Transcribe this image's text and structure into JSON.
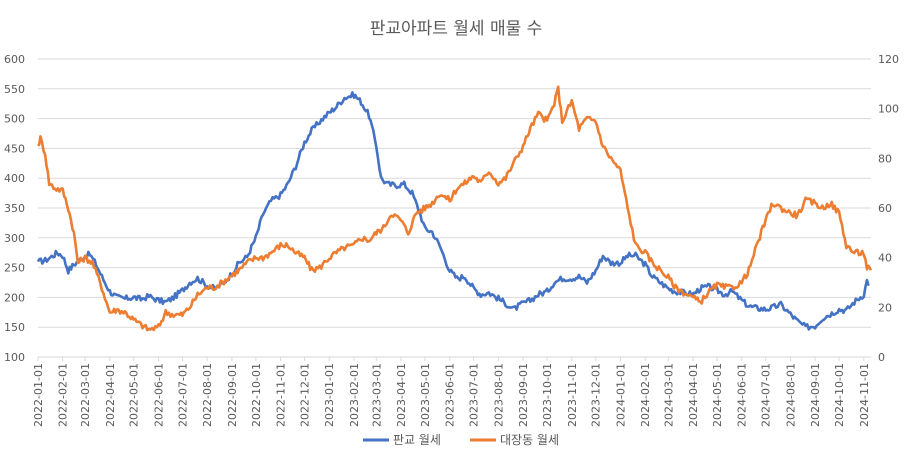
{
  "chart_data": {
    "type": "line",
    "title": "판교아파트 월세 매물 수",
    "xlabel": "",
    "ylabel_left": "",
    "ylabel_right": "",
    "ylim_left": [
      100,
      600
    ],
    "yticks_left": [
      100,
      150,
      200,
      250,
      300,
      350,
      400,
      450,
      500,
      550,
      600
    ],
    "ylim_right": [
      0,
      120
    ],
    "yticks_right": [
      0,
      20,
      40,
      60,
      80,
      100,
      120
    ],
    "grid": "horizontal",
    "legend_position": "bottom",
    "x_start": "2022-01-01",
    "x_end": "2024-11-10",
    "x_ticks": [
      "2022-01-01",
      "2022-02-01",
      "2022-03-01",
      "2022-04-01",
      "2022-05-01",
      "2022-06-01",
      "2022-07-01",
      "2022-08-01",
      "2022-09-01",
      "2022-10-01",
      "2022-11-01",
      "2022-12-01",
      "2023-01-01",
      "2023-02-01",
      "2023-03-01",
      "2023-04-01",
      "2023-05-01",
      "2023-06-01",
      "2023-07-01",
      "2023-08-01",
      "2023-09-01",
      "2023-10-01",
      "2023-11-01",
      "2023-12-01",
      "2024-01-01",
      "2024-02-01",
      "2024-03-01",
      "2024-04-01",
      "2024-05-01",
      "2024-06-01",
      "2024-07-01",
      "2024-08-01",
      "2024-09-01",
      "2024-10-01",
      "2024-11-01"
    ],
    "series": [
      {
        "name": "판교 월세",
        "axis": "left",
        "color": "#4472C4",
        "points": [
          [
            "2022-01-01",
            260
          ],
          [
            "2022-01-10",
            262
          ],
          [
            "2022-01-20",
            270
          ],
          [
            "2022-01-25",
            275
          ],
          [
            "2022-02-01",
            270
          ],
          [
            "2022-02-08",
            245
          ],
          [
            "2022-02-15",
            255
          ],
          [
            "2022-02-22",
            262
          ],
          [
            "2022-03-01",
            270
          ],
          [
            "2022-03-07",
            272
          ],
          [
            "2022-03-15",
            255
          ],
          [
            "2022-03-22",
            235
          ],
          [
            "2022-04-01",
            210
          ],
          [
            "2022-04-10",
            200
          ],
          [
            "2022-04-20",
            198
          ],
          [
            "2022-05-01",
            200
          ],
          [
            "2022-05-10",
            197
          ],
          [
            "2022-05-20",
            202
          ],
          [
            "2022-06-01",
            195
          ],
          [
            "2022-06-10",
            192
          ],
          [
            "2022-06-20",
            200
          ],
          [
            "2022-07-01",
            212
          ],
          [
            "2022-07-10",
            225
          ],
          [
            "2022-07-20",
            232
          ],
          [
            "2022-08-01",
            220
          ],
          [
            "2022-08-10",
            215
          ],
          [
            "2022-08-20",
            222
          ],
          [
            "2022-09-01",
            240
          ],
          [
            "2022-09-10",
            258
          ],
          [
            "2022-09-20",
            268
          ],
          [
            "2022-10-01",
            300
          ],
          [
            "2022-10-10",
            340
          ],
          [
            "2022-10-20",
            362
          ],
          [
            "2022-11-01",
            372
          ],
          [
            "2022-11-10",
            390
          ],
          [
            "2022-11-20",
            420
          ],
          [
            "2022-12-01",
            460
          ],
          [
            "2022-12-10",
            480
          ],
          [
            "2022-12-20",
            495
          ],
          [
            "2023-01-01",
            510
          ],
          [
            "2023-01-10",
            520
          ],
          [
            "2023-01-20",
            535
          ],
          [
            "2023-02-01",
            540
          ],
          [
            "2023-02-10",
            528
          ],
          [
            "2023-02-20",
            505
          ],
          [
            "2023-03-01",
            455
          ],
          [
            "2023-03-07",
            400
          ],
          [
            "2023-03-15",
            390
          ],
          [
            "2023-03-25",
            388
          ],
          [
            "2023-04-05",
            390
          ],
          [
            "2023-04-15",
            375
          ],
          [
            "2023-04-25",
            340
          ],
          [
            "2023-05-01",
            315
          ],
          [
            "2023-05-10",
            310
          ],
          [
            "2023-05-20",
            285
          ],
          [
            "2023-06-01",
            245
          ],
          [
            "2023-06-10",
            232
          ],
          [
            "2023-06-20",
            235
          ],
          [
            "2023-07-01",
            215
          ],
          [
            "2023-07-10",
            205
          ],
          [
            "2023-07-20",
            208
          ],
          [
            "2023-08-01",
            198
          ],
          [
            "2023-08-10",
            190
          ],
          [
            "2023-08-20",
            180
          ],
          [
            "2023-09-01",
            190
          ],
          [
            "2023-09-10",
            195
          ],
          [
            "2023-09-20",
            205
          ],
          [
            "2023-10-01",
            210
          ],
          [
            "2023-10-10",
            225
          ],
          [
            "2023-10-20",
            232
          ],
          [
            "2023-11-01",
            232
          ],
          [
            "2023-11-10",
            235
          ],
          [
            "2023-11-20",
            225
          ],
          [
            "2023-12-01",
            245
          ],
          [
            "2023-12-10",
            270
          ],
          [
            "2023-12-20",
            258
          ],
          [
            "2024-01-01",
            258
          ],
          [
            "2024-01-10",
            270
          ],
          [
            "2024-01-20",
            270
          ],
          [
            "2024-02-01",
            255
          ],
          [
            "2024-02-10",
            235
          ],
          [
            "2024-02-20",
            225
          ],
          [
            "2024-03-01",
            215
          ],
          [
            "2024-03-10",
            210
          ],
          [
            "2024-03-20",
            208
          ],
          [
            "2024-04-01",
            205
          ],
          [
            "2024-04-10",
            215
          ],
          [
            "2024-04-20",
            218
          ],
          [
            "2024-05-01",
            212
          ],
          [
            "2024-05-10",
            205
          ],
          [
            "2024-05-20",
            210
          ],
          [
            "2024-06-01",
            195
          ],
          [
            "2024-06-10",
            185
          ],
          [
            "2024-06-20",
            182
          ],
          [
            "2024-07-01",
            180
          ],
          [
            "2024-07-10",
            183
          ],
          [
            "2024-07-20",
            188
          ],
          [
            "2024-08-01",
            172
          ],
          [
            "2024-08-10",
            160
          ],
          [
            "2024-08-20",
            150
          ],
          [
            "2024-09-01",
            152
          ],
          [
            "2024-09-10",
            165
          ],
          [
            "2024-09-20",
            172
          ],
          [
            "2024-10-01",
            180
          ],
          [
            "2024-10-10",
            178
          ],
          [
            "2024-10-20",
            192
          ],
          [
            "2024-11-01",
            205
          ],
          [
            "2024-11-05",
            228
          ],
          [
            "2024-11-08",
            222
          ]
        ]
      },
      {
        "name": "대장동 월세",
        "axis": "right",
        "color": "#ED7D31",
        "points": [
          [
            "2022-01-01",
            85
          ],
          [
            "2022-01-04",
            88
          ],
          [
            "2022-01-10",
            82
          ],
          [
            "2022-01-15",
            70
          ],
          [
            "2022-01-22",
            68
          ],
          [
            "2022-02-01",
            67
          ],
          [
            "2022-02-08",
            60
          ],
          [
            "2022-02-15",
            50
          ],
          [
            "2022-02-20",
            38
          ],
          [
            "2022-03-01",
            40
          ],
          [
            "2022-03-10",
            38
          ],
          [
            "2022-03-20",
            30
          ],
          [
            "2022-04-01",
            18
          ],
          [
            "2022-04-10",
            19
          ],
          [
            "2022-04-20",
            18
          ],
          [
            "2022-05-01",
            15
          ],
          [
            "2022-05-10",
            13
          ],
          [
            "2022-05-20",
            11
          ],
          [
            "2022-06-01",
            12
          ],
          [
            "2022-06-10",
            18
          ],
          [
            "2022-06-20",
            17
          ],
          [
            "2022-07-01",
            17
          ],
          [
            "2022-07-10",
            20
          ],
          [
            "2022-07-20",
            25
          ],
          [
            "2022-08-01",
            28
          ],
          [
            "2022-08-10",
            28
          ],
          [
            "2022-08-20",
            30
          ],
          [
            "2022-09-01",
            33
          ],
          [
            "2022-09-10",
            35
          ],
          [
            "2022-09-20",
            38
          ],
          [
            "2022-10-01",
            40
          ],
          [
            "2022-10-10",
            40
          ],
          [
            "2022-10-20",
            42
          ],
          [
            "2022-11-01",
            45
          ],
          [
            "2022-11-10",
            45
          ],
          [
            "2022-11-20",
            42
          ],
          [
            "2022-12-01",
            40
          ],
          [
            "2022-12-10",
            35
          ],
          [
            "2022-12-20",
            36
          ],
          [
            "2023-01-01",
            40
          ],
          [
            "2023-01-10",
            42
          ],
          [
            "2023-01-20",
            44
          ],
          [
            "2023-02-01",
            45
          ],
          [
            "2023-02-10",
            48
          ],
          [
            "2023-02-20",
            47
          ],
          [
            "2023-03-01",
            50
          ],
          [
            "2023-03-10",
            52
          ],
          [
            "2023-03-20",
            58
          ],
          [
            "2023-04-01",
            55
          ],
          [
            "2023-04-10",
            50
          ],
          [
            "2023-04-20",
            58
          ],
          [
            "2023-05-01",
            60
          ],
          [
            "2023-05-10",
            62
          ],
          [
            "2023-05-20",
            66
          ],
          [
            "2023-06-01",
            63
          ],
          [
            "2023-06-10",
            68
          ],
          [
            "2023-06-20",
            70
          ],
          [
            "2023-07-01",
            73
          ],
          [
            "2023-07-10",
            70
          ],
          [
            "2023-07-20",
            75
          ],
          [
            "2023-08-01",
            70
          ],
          [
            "2023-08-10",
            72
          ],
          [
            "2023-08-20",
            78
          ],
          [
            "2023-09-01",
            85
          ],
          [
            "2023-09-10",
            92
          ],
          [
            "2023-09-20",
            98
          ],
          [
            "2023-10-01",
            95
          ],
          [
            "2023-10-10",
            102
          ],
          [
            "2023-10-15",
            108
          ],
          [
            "2023-10-20",
            95
          ],
          [
            "2023-11-01",
            103
          ],
          [
            "2023-11-10",
            92
          ],
          [
            "2023-11-20",
            96
          ],
          [
            "2023-12-01",
            95
          ],
          [
            "2023-12-10",
            85
          ],
          [
            "2023-12-20",
            80
          ],
          [
            "2024-01-01",
            75
          ],
          [
            "2024-01-10",
            60
          ],
          [
            "2024-01-20",
            45
          ],
          [
            "2024-02-01",
            42
          ],
          [
            "2024-02-10",
            38
          ],
          [
            "2024-02-20",
            35
          ],
          [
            "2024-03-01",
            32
          ],
          [
            "2024-03-10",
            28
          ],
          [
            "2024-03-20",
            26
          ],
          [
            "2024-04-01",
            24
          ],
          [
            "2024-04-10",
            22
          ],
          [
            "2024-04-20",
            26
          ],
          [
            "2024-05-01",
            29
          ],
          [
            "2024-05-10",
            28
          ],
          [
            "2024-05-20",
            28
          ],
          [
            "2024-06-01",
            30
          ],
          [
            "2024-06-10",
            35
          ],
          [
            "2024-06-20",
            45
          ],
          [
            "2024-07-01",
            55
          ],
          [
            "2024-07-10",
            62
          ],
          [
            "2024-07-20",
            60
          ],
          [
            "2024-08-01",
            58
          ],
          [
            "2024-08-10",
            57
          ],
          [
            "2024-08-20",
            63
          ],
          [
            "2024-09-01",
            62
          ],
          [
            "2024-09-10",
            60
          ],
          [
            "2024-09-20",
            62
          ],
          [
            "2024-10-01",
            58
          ],
          [
            "2024-10-10",
            45
          ],
          [
            "2024-10-20",
            42
          ],
          [
            "2024-11-01",
            42
          ],
          [
            "2024-11-05",
            36
          ],
          [
            "2024-11-10",
            35
          ]
        ]
      }
    ]
  }
}
